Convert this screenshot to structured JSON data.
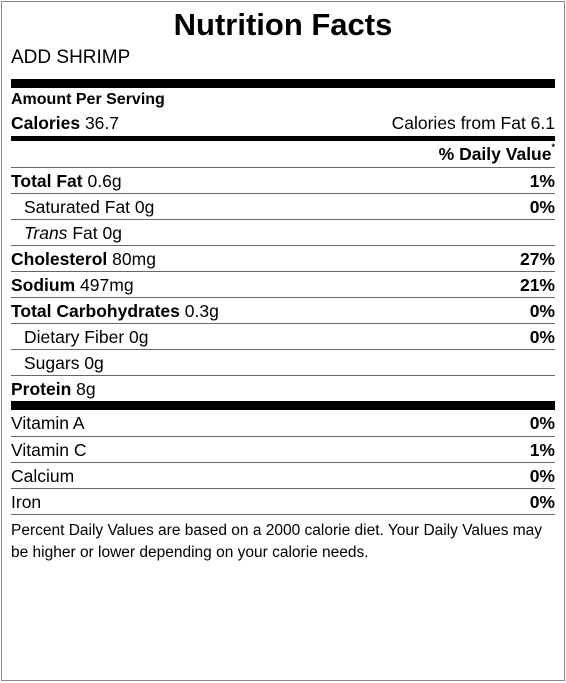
{
  "label": {
    "title": "Nutrition Facts",
    "food_name": "ADD SHRIMP",
    "amount_per_serving": "Amount Per Serving",
    "calories_label": "Calories",
    "calories_value": "36.7",
    "calories_from_fat": "Calories from Fat 6.1",
    "daily_value_header": "% Daily Value",
    "daily_value_marker": "*",
    "nutrients": {
      "total_fat": {
        "label": "Total Fat",
        "amount": "0.6g",
        "dv": "1%"
      },
      "saturated_fat": {
        "label": "Saturated Fat",
        "amount": "0g",
        "dv": "0%"
      },
      "trans_fat": {
        "label_italic": "Trans",
        "label": "Fat",
        "amount": "0g"
      },
      "cholesterol": {
        "label": "Cholesterol",
        "amount": "80mg",
        "dv": "27%"
      },
      "sodium": {
        "label": "Sodium",
        "amount": "497mg",
        "dv": "21%"
      },
      "total_carbs": {
        "label": "Total Carbohydrates",
        "amount": "0.3g",
        "dv": "0%"
      },
      "dietary_fiber": {
        "label": "Dietary Fiber",
        "amount": "0g",
        "dv": "0%"
      },
      "sugars": {
        "label": "Sugars",
        "amount": "0g"
      },
      "protein": {
        "label": "Protein",
        "amount": "8g"
      }
    },
    "vitamins": [
      {
        "label": "Vitamin A",
        "dv": "0%"
      },
      {
        "label": "Vitamin C",
        "dv": "1%"
      },
      {
        "label": "Calcium",
        "dv": "0%"
      },
      {
        "label": "Iron",
        "dv": "0%"
      }
    ],
    "footnote": "Percent Daily Values are based on a 2000 calorie diet. Your Daily Values may be higher or lower depending on your calorie needs."
  }
}
